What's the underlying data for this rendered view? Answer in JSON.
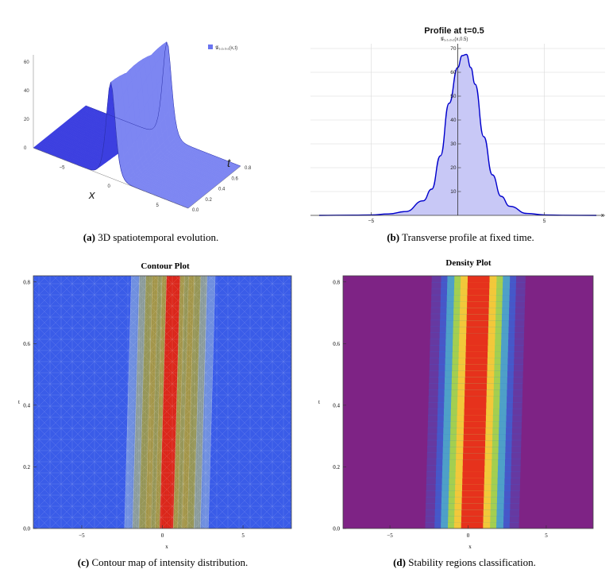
{
  "chart_data": [
    {
      "id": "a",
      "type": "surface3d",
      "title": "",
      "legend": "𝒢₁,₁,₃,₁(x,t)",
      "xlabel": "x",
      "tlabel": "t",
      "x_ticks": [
        -5,
        0,
        5
      ],
      "t_ticks": [
        0.0,
        0.2,
        0.4,
        0.6,
        0.8
      ],
      "z_ticks": [
        0,
        20,
        40,
        60
      ],
      "xlim": [
        -8,
        8
      ],
      "tlim": [
        0,
        0.8
      ],
      "zlim": [
        0,
        70
      ],
      "peak": 67,
      "width": 0.62,
      "velocity": 0.5,
      "color": "#6a74f0"
    },
    {
      "id": "b",
      "type": "area",
      "title": "Profile at t=0.5",
      "legend": "𝒢₁,₁,₃,₁(x,0.5)",
      "xlabel": "x",
      "x_ticks": [
        -5,
        5
      ],
      "y_ticks": [
        10,
        20,
        30,
        40,
        50,
        60,
        70
      ],
      "xlim": [
        -8.5,
        8.5
      ],
      "ylim": [
        0,
        72
      ],
      "x": [
        -8,
        -6,
        -5,
        -4,
        -3,
        -2,
        -1.5,
        -1,
        -0.5,
        0,
        0.25,
        0.5,
        0.75,
        1,
        1.5,
        2,
        2.5,
        3,
        4,
        5,
        6,
        8
      ],
      "y": [
        0,
        0.1,
        0.2,
        0.6,
        1.6,
        6.1,
        11,
        25,
        47,
        62,
        67,
        67.5,
        62,
        55,
        33,
        17,
        8,
        3.8,
        0.8,
        0.2,
        0.05,
        0
      ],
      "line_color": "#0000cc",
      "fill_color": "#c8c8f6"
    },
    {
      "id": "c",
      "type": "contour",
      "title": "Contour Plot",
      "xlabel": "x",
      "ylabel": "t",
      "x_ticks": [
        -5,
        0,
        5
      ],
      "y_ticks": [
        0.0,
        0.2,
        0.4,
        0.6,
        0.8
      ],
      "xlim": [
        -8,
        8
      ],
      "ylim": [
        0,
        0.82
      ],
      "center_at_t0": 0.25,
      "center_at_t082": 0.68,
      "colors": [
        "#3a5ce8",
        "#6f8fe0",
        "#8fa0a0",
        "#9a9a5a",
        "#a89a4c",
        "#e0281c"
      ]
    },
    {
      "id": "d",
      "type": "heatmap",
      "title": "Density Plot",
      "xlabel": "x",
      "ylabel": "t",
      "x_ticks": [
        -5,
        0,
        5
      ],
      "y_ticks": [
        0.0,
        0.2,
        0.4,
        0.6,
        0.8
      ],
      "xlim": [
        -8,
        8
      ],
      "ylim": [
        0,
        0.82
      ],
      "center_at_t0": 0.25,
      "center_at_t082": 0.68,
      "colors": [
        "#7e2385",
        "#3a64d8",
        "#4fa8c8",
        "#a8d24a",
        "#f2c83a",
        "#e6321c"
      ]
    }
  ],
  "captions": {
    "a": {
      "label": "(a)",
      "text": "3D spatiotemporal evolution."
    },
    "b": {
      "label": "(b)",
      "text": "Transverse profile at fixed time."
    },
    "c": {
      "label": "(c)",
      "text": "Contour map of intensity distribution."
    },
    "d": {
      "label": "(d)",
      "text": "Stability regions classification."
    }
  }
}
